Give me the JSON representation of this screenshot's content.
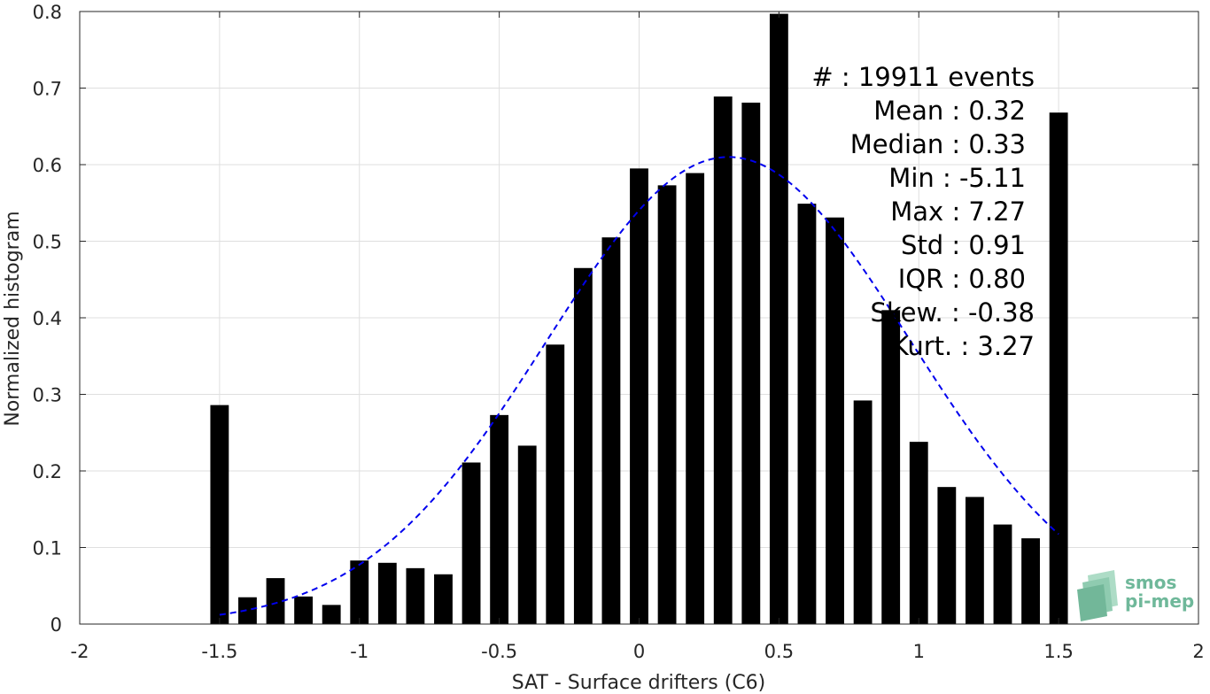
{
  "chart_data": {
    "type": "bar",
    "xlabel": "SAT - Surface drifters (C6)",
    "ylabel": "Normalized histogram",
    "xlim": [
      -2,
      2
    ],
    "ylim": [
      0,
      0.8
    ],
    "grid": true,
    "xticks": [
      -2,
      -1.5,
      -1,
      -0.5,
      0,
      0.5,
      1,
      1.5,
      2
    ],
    "yticks": [
      0,
      0.1,
      0.2,
      0.3,
      0.4,
      0.5,
      0.6,
      0.7,
      0.8
    ],
    "xtick_labels": [
      "-2",
      "-1.5",
      "-1",
      "-0.5",
      "0",
      "0.5",
      "1",
      "1.5",
      "2"
    ],
    "ytick_labels": [
      "0",
      "0.1",
      "0.2",
      "0.3",
      "0.4",
      "0.5",
      "0.6",
      "0.7",
      "0.8"
    ],
    "bar_color": "#000000",
    "bins": [
      -1.5,
      -1.4,
      -1.3,
      -1.2,
      -1.1,
      -1.0,
      -0.9,
      -0.8,
      -0.7,
      -0.6,
      -0.5,
      -0.4,
      -0.3,
      -0.2,
      -0.1,
      0.0,
      0.1,
      0.2,
      0.3,
      0.4,
      0.5,
      0.6,
      0.7,
      0.8,
      0.9,
      1.0,
      1.1,
      1.2,
      1.3,
      1.4,
      1.5
    ],
    "values": [
      0.286,
      0.035,
      0.06,
      0.036,
      0.025,
      0.083,
      0.08,
      0.073,
      0.065,
      0.211,
      0.273,
      0.233,
      0.365,
      0.465,
      0.505,
      0.595,
      0.573,
      0.589,
      0.689,
      0.681,
      0.797,
      0.549,
      0.531,
      0.292,
      0.41,
      0.238,
      0.179,
      0.166,
      0.13,
      0.112,
      0.668
    ],
    "fit": {
      "style": "dashed",
      "color": "#0000ee",
      "mean": 0.32,
      "std": 0.65,
      "peak": 0.61,
      "xrange": [
        -1.5,
        1.5
      ]
    }
  },
  "stats": [
    {
      "label": "#  : 19911 events"
    },
    {
      "label": "Mean : 0.32"
    },
    {
      "label": "Median : 0.33"
    },
    {
      "label": "Min : -5.11"
    },
    {
      "label": "Max : 7.27"
    },
    {
      "label": "Std : 0.91"
    },
    {
      "label": "IQR : 0.80"
    },
    {
      "label": "Skew. : -0.38"
    },
    {
      "label": "Kurt. : 3.27"
    }
  ],
  "logo": {
    "line1": "smos",
    "line2": "pi-mep",
    "color": "#6fb89a"
  }
}
